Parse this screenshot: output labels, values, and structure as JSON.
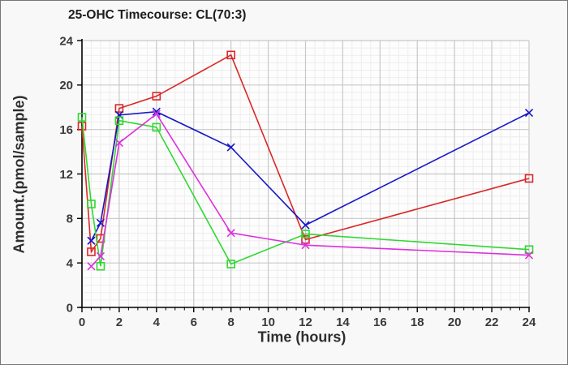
{
  "window": {
    "background": "#f8f8f8",
    "border_color": "#767676",
    "plot_background": "#fdfdfd"
  },
  "chart_data": {
    "type": "line",
    "title": "25-OHC Timecourse: CL(70:3)",
    "xlabel": "Time (hours)",
    "ylabel": "Amount.(pmol/sample)",
    "xlim": [
      0,
      24
    ],
    "ylim": [
      0,
      24
    ],
    "x_ticks": [
      0,
      2,
      4,
      6,
      8,
      10,
      12,
      14,
      16,
      18,
      20,
      22,
      24
    ],
    "y_ticks": [
      0,
      4,
      8,
      12,
      16,
      20,
      24
    ],
    "x_minor_step": 0.5,
    "y_minor_divisions_per_major": 6,
    "grid": true,
    "legend_position": "none",
    "colors": {
      "major_grid": "#c8c8c8",
      "minor_grid": "#ededed",
      "axis_spine": "#000000",
      "tick_text": "#3a3a3a"
    },
    "series": [
      {
        "name": "series-red-squares",
        "color": "#db2727",
        "marker": "square",
        "x": [
          0,
          0.5,
          1,
          2,
          4,
          8,
          12,
          24
        ],
        "y": [
          16.3,
          5.0,
          6.2,
          17.9,
          19.0,
          22.7,
          6.1,
          11.6
        ]
      },
      {
        "name": "series-blue-crosses",
        "color": "#1616c8",
        "marker": "x",
        "x": [
          0.5,
          1,
          2,
          4,
          8,
          12,
          24
        ],
        "y": [
          6.0,
          7.6,
          17.3,
          17.6,
          14.4,
          7.4,
          17.5
        ]
      },
      {
        "name": "series-green-squares",
        "color": "#30d830",
        "marker": "square",
        "x": [
          0,
          0.5,
          1,
          2,
          4,
          8,
          12,
          24
        ],
        "y": [
          17.1,
          9.3,
          3.7,
          16.8,
          16.2,
          3.9,
          6.6,
          5.2
        ]
      },
      {
        "name": "series-magenta-crosses",
        "color": "#dd30dd",
        "marker": "x",
        "x": [
          0.5,
          1,
          2,
          4,
          8,
          12,
          24
        ],
        "y": [
          3.7,
          4.6,
          14.8,
          17.4,
          6.7,
          5.6,
          4.7
        ]
      }
    ]
  }
}
